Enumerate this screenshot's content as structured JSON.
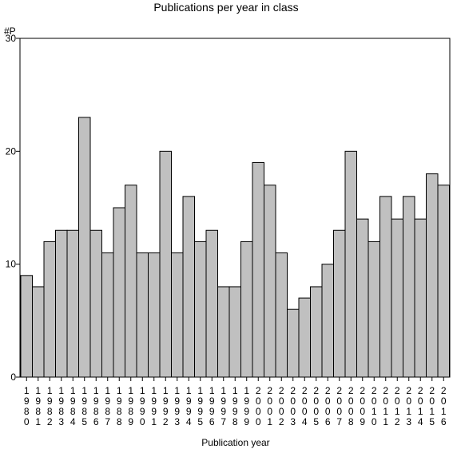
{
  "chart_data": {
    "type": "bar",
    "title": "Publications per year in class",
    "ylabel": "#P",
    "xlabel": "Publication year",
    "ylim": [
      0,
      30
    ],
    "yticks": [
      0,
      10,
      20,
      30
    ],
    "categories": [
      "1980",
      "1981",
      "1982",
      "1983",
      "1984",
      "1985",
      "1986",
      "1987",
      "1988",
      "1989",
      "1990",
      "1991",
      "1992",
      "1993",
      "1994",
      "1995",
      "1996",
      "1997",
      "1998",
      "1999",
      "2000",
      "2001",
      "2002",
      "2003",
      "2004",
      "2005",
      "2006",
      "2007",
      "2008",
      "2009",
      "2010",
      "2011",
      "2012",
      "2013",
      "2014",
      "2015",
      "2016"
    ],
    "values": [
      9,
      8,
      12,
      13,
      13,
      23,
      13,
      11,
      15,
      17,
      11,
      11,
      20,
      11,
      16,
      12,
      13,
      8,
      8,
      12,
      19,
      17,
      11,
      6,
      7,
      8,
      10,
      13,
      20,
      14,
      12,
      16,
      14,
      16,
      14,
      18,
      17
    ],
    "colors": {
      "bar_fill": "#c0c0c0",
      "bar_stroke": "#000000",
      "axis": "#000000"
    },
    "grid": false,
    "legend": "none"
  }
}
